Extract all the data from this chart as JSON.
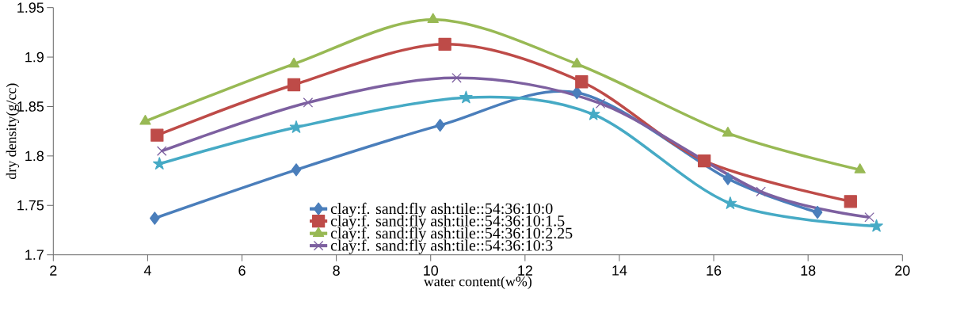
{
  "chart_data": {
    "type": "line",
    "xlabel": "water content(w%)",
    "ylabel": "dry density(g/cc)",
    "xlim": [
      2,
      20
    ],
    "xticks": [
      2,
      4,
      6,
      8,
      10,
      12,
      14,
      16,
      18,
      20
    ],
    "ylim": [
      1.7,
      1.95
    ],
    "yticks": [
      1.7,
      1.75,
      1.8,
      1.85,
      1.9,
      1.95
    ],
    "grid": false,
    "legend": "bottom",
    "line_style": "solid",
    "series": [
      {
        "name": "clay:f. sand:fly ash:tile::54:36:10:0",
        "color": "#4a7ebb",
        "marker": "diamond",
        "x": [
          4.15,
          7.15,
          10.2,
          13.1,
          16.3,
          18.2
        ],
        "values": [
          1.737,
          1.786,
          1.831,
          1.864,
          1.777,
          1.743
        ]
      },
      {
        "name": "clay:f. sand:fly ash:tile::54:36:10:1.5",
        "color": "#be4b48",
        "marker": "square",
        "x": [
          4.2,
          7.1,
          10.3,
          13.2,
          15.8,
          18.9
        ],
        "values": [
          1.821,
          1.872,
          1.913,
          1.875,
          1.795,
          1.754
        ]
      },
      {
        "name": "clay:f. sand:fly ash:tile::54:36:10:2.25",
        "color": "#98b954",
        "marker": "triangle",
        "x": [
          3.95,
          7.1,
          10.05,
          13.1,
          16.3,
          19.1
        ],
        "values": [
          1.835,
          1.893,
          1.938,
          1.893,
          1.823,
          1.786
        ]
      },
      {
        "name": "clay:f. sand:fly ash:tile::54:36:10:3",
        "color": "#7d60a0",
        "marker": "cross",
        "x": [
          4.3,
          7.4,
          10.55,
          13.6,
          17.0,
          19.3
        ],
        "values": [
          1.805,
          1.854,
          1.879,
          1.853,
          1.764,
          1.738
        ]
      },
      {
        "color": "#46aac5",
        "marker": "star",
        "x": [
          4.25,
          7.15,
          10.75,
          13.45,
          16.35,
          19.45
        ],
        "values": [
          1.792,
          1.829,
          1.859,
          1.842,
          1.752,
          1.729
        ]
      }
    ]
  }
}
